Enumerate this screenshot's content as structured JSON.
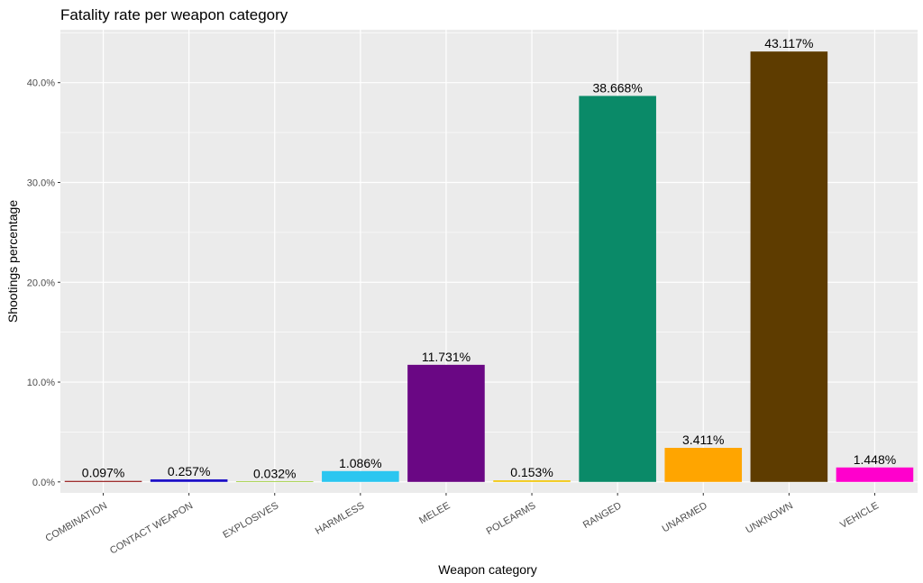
{
  "chart_data": {
    "type": "bar",
    "title": "Fatality rate per weapon category",
    "xlabel": "Weapon category",
    "ylabel": "Shootings percentage",
    "categories": [
      "COMBINATION",
      "CONTACT WEAPON",
      "EXPLOSIVES",
      "HARMLESS",
      "MELEE",
      "POLEARMS",
      "RANGED",
      "UNARMED",
      "UNKNOWN",
      "VEHICLE"
    ],
    "values": [
      0.097,
      0.257,
      0.032,
      1.086,
      11.731,
      0.153,
      38.668,
      3.411,
      43.117,
      1.448
    ],
    "value_labels": [
      "0.097%",
      "0.257%",
      "0.032%",
      "1.086%",
      "11.731%",
      "0.153%",
      "38.668%",
      "3.411%",
      "43.117%",
      "1.448%"
    ],
    "colors": [
      "#8B0000",
      "#1F12C7",
      "#9ACD32",
      "#2BC6F0",
      "#6A0784",
      "#F2C500",
      "#0A8A68",
      "#FFA500",
      "#5E3C00",
      "#FF00CC"
    ],
    "y_ticks": [
      0,
      10,
      20,
      30,
      40
    ],
    "y_tick_labels": [
      "0.0%",
      "10.0%",
      "20.0%",
      "30.0%",
      "40.0%"
    ],
    "ylim": [
      -1.1,
      45.3
    ],
    "panel_background": "#EBEBEB",
    "grid": true,
    "legend": "none"
  }
}
